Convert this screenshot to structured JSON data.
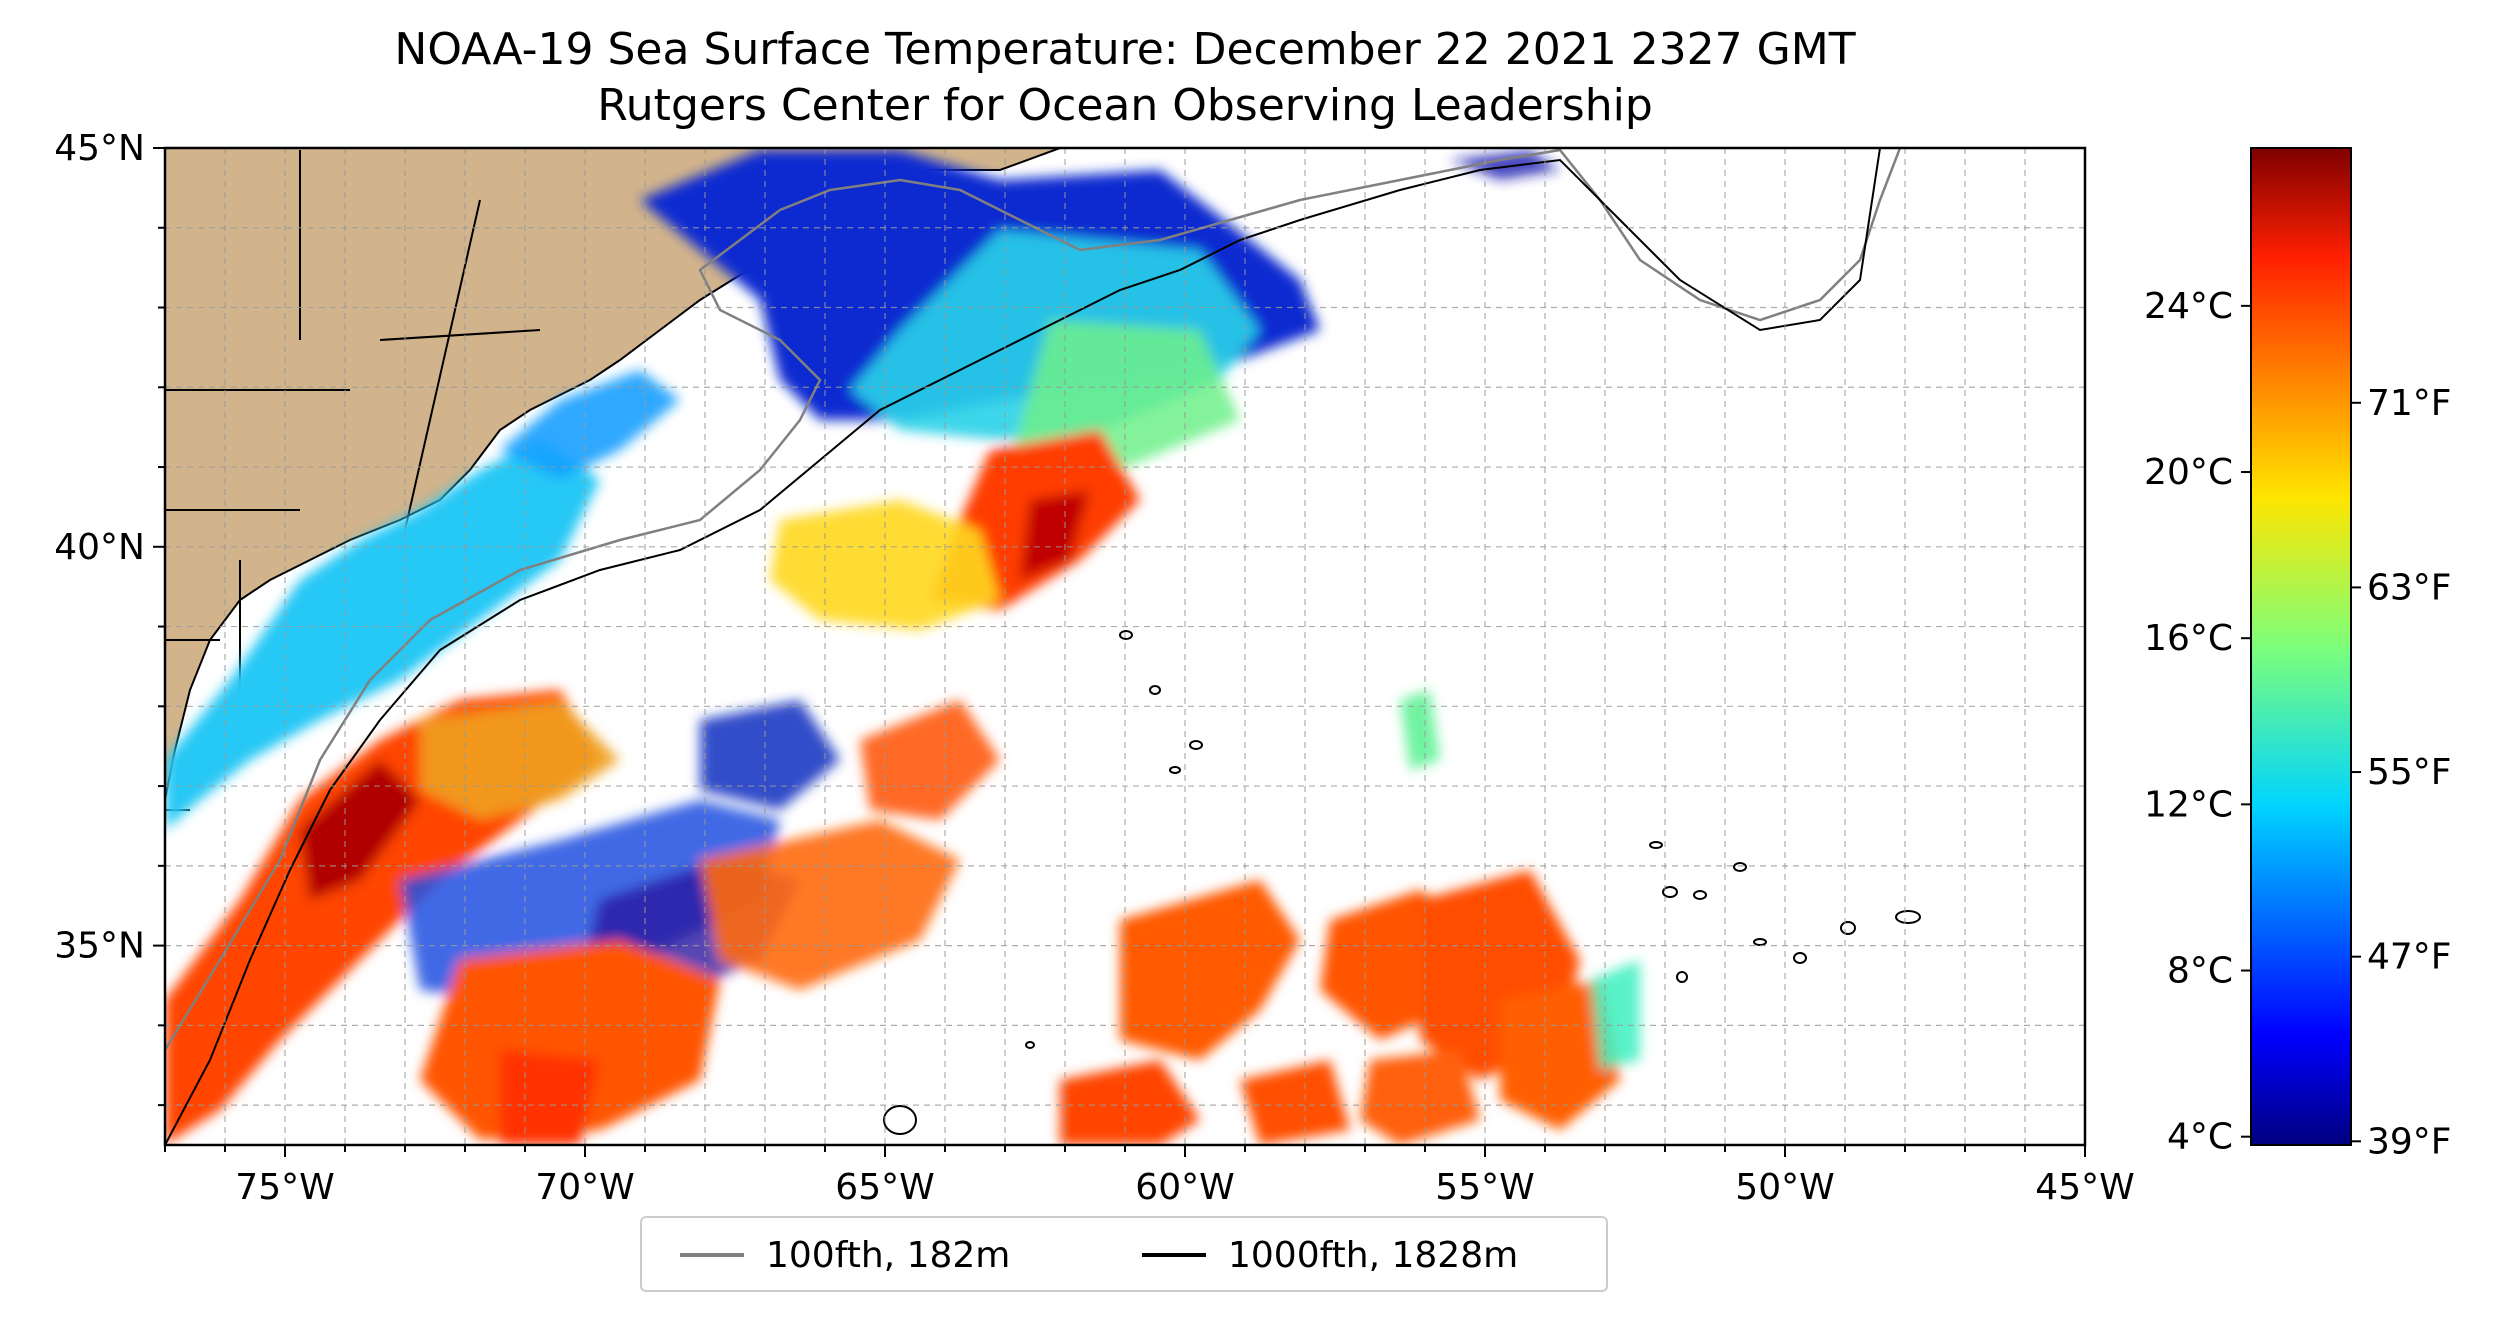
{
  "title": {
    "line1": "NOAA-19 Sea Surface Temperature: December 22 2021 2327 GMT",
    "line2": "Rutgers Center for Ocean Observing Leadership"
  },
  "map": {
    "lon_range": [
      -77,
      -45
    ],
    "lat_range": [
      32.5,
      45
    ],
    "lon_ticks": [
      {
        "value": -75,
        "label": "75°W"
      },
      {
        "value": -70,
        "label": "70°W"
      },
      {
        "value": -65,
        "label": "65°W"
      },
      {
        "value": -60,
        "label": "60°W"
      },
      {
        "value": -55,
        "label": "55°W"
      },
      {
        "value": -50,
        "label": "50°W"
      },
      {
        "value": -45,
        "label": "45°W"
      }
    ],
    "lat_ticks": [
      {
        "value": 45,
        "label": "45°N"
      },
      {
        "value": 40,
        "label": "40°N"
      },
      {
        "value": 35,
        "label": "35°N"
      }
    ],
    "grid": "dashed, 1° spacing",
    "land_color": "#d2b48c",
    "ocean_missing_color": "#ffffff"
  },
  "colorbar": {
    "colormap": "jet",
    "celsius_ticks": [
      "24°C",
      "20°C",
      "16°C",
      "12°C",
      "8°C",
      "4°C"
    ],
    "fahrenheit_ticks": [
      "71°F",
      "63°F",
      "55°F",
      "47°F",
      "39°F"
    ]
  },
  "legend": {
    "items": [
      {
        "label": "100fth, 182m",
        "color": "#808080"
      },
      {
        "label": "1000fth, 1828m",
        "color": "#000000"
      }
    ]
  }
}
